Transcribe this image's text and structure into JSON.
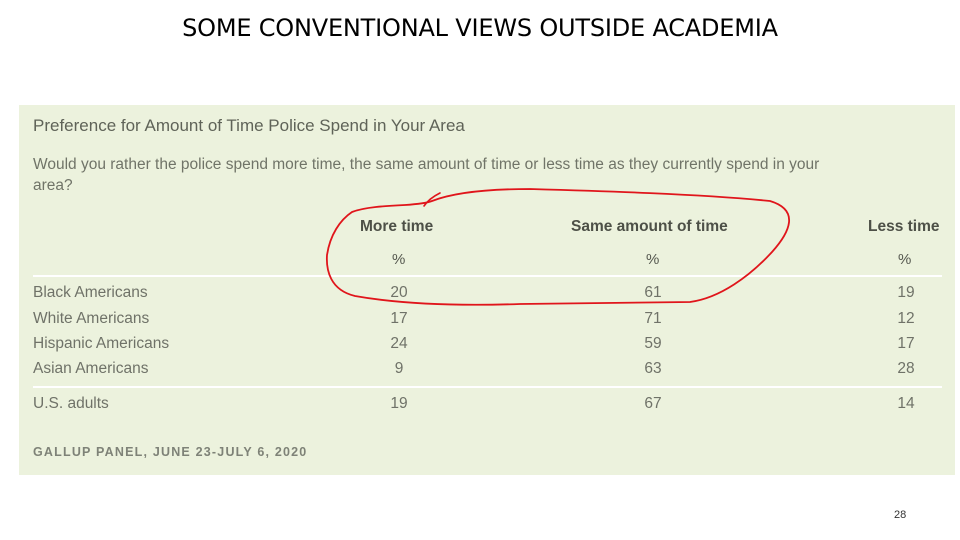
{
  "slide": {
    "title": "SOME CONVENTIONAL VIEWS OUTSIDE ACADEMIA",
    "page_number": "28"
  },
  "panel": {
    "heading": "Preference for Amount of Time Police Spend in Your Area",
    "question": "Would you rather the police spend more time, the same amount of time or less time as they currently spend in your area?",
    "source": "GALLUP PANEL, JUNE 23-JULY 6, 2020"
  },
  "chart_data": {
    "type": "table",
    "columns": [
      "More time",
      "Same amount of time",
      "Less time"
    ],
    "units": [
      "%",
      "%",
      "%"
    ],
    "rows": [
      {
        "label": "Black Americans",
        "values": [
          "20",
          "61",
          "19"
        ]
      },
      {
        "label": "White Americans",
        "values": [
          "17",
          "71",
          "12"
        ]
      },
      {
        "label": "Hispanic Americans",
        "values": [
          "24",
          "59",
          "17"
        ]
      },
      {
        "label": "Asian Americans",
        "values": [
          "9",
          "63",
          "28"
        ]
      },
      {
        "label": "U.S. adults",
        "values": [
          "19",
          "67",
          "14"
        ]
      }
    ]
  },
  "annotation": {
    "color": "#e0151b"
  }
}
